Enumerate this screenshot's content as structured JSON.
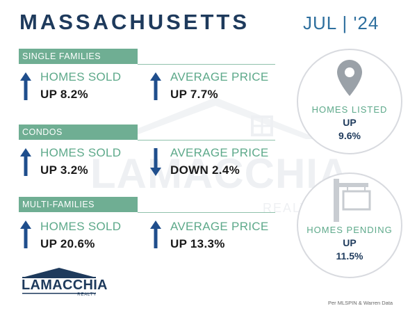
{
  "header": {
    "state": "MASSACHUSETTS",
    "date": "JUL | '24"
  },
  "watermark": {
    "brand": "LAMACCHIA",
    "sub": "REALTY"
  },
  "sections": [
    {
      "title": "SINGLE FAMILIES",
      "sold": {
        "label": "HOMES SOLD",
        "value": "UP 8.2%",
        "direction": "up"
      },
      "price": {
        "label": "AVERAGE PRICE",
        "value": "UP 7.7%",
        "direction": "up"
      }
    },
    {
      "title": "CONDOS",
      "sold": {
        "label": "HOMES SOLD",
        "value": "UP 3.2%",
        "direction": "up"
      },
      "price": {
        "label": "AVERAGE PRICE",
        "value": "DOWN 2.4%",
        "direction": "down"
      }
    },
    {
      "title": "MULTI-FAMILIES",
      "sold": {
        "label": "HOMES SOLD",
        "value": "UP 20.6%",
        "direction": "up"
      },
      "price": {
        "label": "AVERAGE PRICE",
        "value": "UP 13.3%",
        "direction": "up"
      }
    }
  ],
  "listed": {
    "label": "HOMES LISTED",
    "direction": "UP",
    "value": "9.6%",
    "icon": "location-pin-icon"
  },
  "pending": {
    "label": "HOMES PENDING",
    "direction": "UP",
    "value": "11.5%",
    "icon": "for-sale-sign-icon"
  },
  "logo": {
    "brand": "LAMACCHIA",
    "sub": "REALTY"
  },
  "source": "Per MLSPIN & Warren Data",
  "colors": {
    "navy": "#1e3a5c",
    "green": "#6fae93",
    "arrow": "#1f4e8c",
    "date": "#2e6f9e"
  }
}
